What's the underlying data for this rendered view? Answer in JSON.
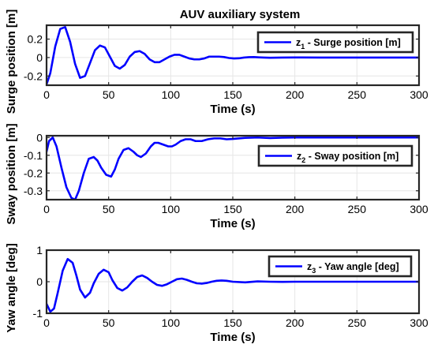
{
  "figure_title": "AUV auxiliary system",
  "colors": {
    "line": "#0000ff",
    "grid": "#e6e6e6",
    "axes": "#262626",
    "background": "#ffffff"
  },
  "chart_data": [
    {
      "type": "line",
      "xlabel": "Time (s)",
      "ylabel": "Surge position [m]",
      "xlim": [
        0,
        300
      ],
      "ylim": [
        -0.3,
        0.35
      ],
      "xticks": [
        0,
        50,
        100,
        150,
        200,
        250,
        300
      ],
      "yticks": [
        -0.2,
        0,
        0.2
      ],
      "xtick_labels": [
        "0",
        "50",
        "100",
        "150",
        "200",
        "250",
        "300"
      ],
      "ytick_labels": [
        "-0.2",
        "0",
        "0.2"
      ],
      "grid": true,
      "legend_position": "top-right",
      "series": [
        {
          "name": "z_1 - Surge position [m]",
          "legend": {
            "base": "z",
            "sub": "1",
            "rest": " - Surge position [m]"
          },
          "x": [
            0,
            3,
            7,
            11,
            15,
            19,
            23,
            27,
            31,
            35,
            39,
            43,
            47,
            51,
            55,
            59,
            63,
            67,
            71,
            75,
            79,
            83,
            87,
            91,
            95,
            99,
            103,
            107,
            111,
            115,
            119,
            123,
            127,
            131,
            135,
            139,
            143,
            147,
            151,
            155,
            159,
            163,
            167,
            171,
            175,
            180,
            190,
            200,
            220,
            240,
            260,
            280,
            300
          ],
          "y": [
            -0.29,
            -0.17,
            0.12,
            0.31,
            0.33,
            0.17,
            -0.07,
            -0.22,
            -0.2,
            -0.06,
            0.08,
            0.13,
            0.11,
            0.01,
            -0.09,
            -0.12,
            -0.08,
            0.01,
            0.06,
            0.07,
            0.04,
            -0.02,
            -0.05,
            -0.05,
            -0.02,
            0.01,
            0.03,
            0.03,
            0.01,
            -0.01,
            -0.02,
            -0.02,
            -0.01,
            0.01,
            0.01,
            0.01,
            0.005,
            -0.005,
            -0.01,
            -0.008,
            0.0,
            0.004,
            0.005,
            0.002,
            0.0,
            -0.002,
            0.0,
            0.001,
            0.0,
            0.0,
            0.0,
            0.0,
            0.0
          ]
        }
      ]
    },
    {
      "type": "line",
      "xlabel": "Time (s)",
      "ylabel": "Sway position [m]",
      "xlim": [
        0,
        300
      ],
      "ylim": [
        -0.35,
        0.01
      ],
      "xticks": [
        0,
        50,
        100,
        150,
        200,
        250,
        300
      ],
      "yticks": [
        -0.3,
        -0.2,
        -0.1,
        0
      ],
      "xtick_labels": [
        "0",
        "50",
        "100",
        "150",
        "200",
        "250",
        "300"
      ],
      "ytick_labels": [
        "-0.3",
        "-0.2",
        "-0.1",
        "0"
      ],
      "grid": true,
      "legend_position": "top-right",
      "series": [
        {
          "name": "z_2 - Sway position [m]",
          "legend": {
            "base": "z",
            "sub": "2",
            "rest": " - Sway position [m]"
          },
          "x": [
            0,
            2,
            5,
            8,
            12,
            16,
            20,
            23,
            26,
            30,
            34,
            38,
            41,
            44,
            48,
            52,
            55,
            58,
            62,
            66,
            70,
            73,
            76,
            80,
            84,
            87,
            90,
            94,
            98,
            101,
            104,
            108,
            112,
            116,
            120,
            125,
            130,
            135,
            140,
            145,
            150,
            160,
            170,
            180,
            190,
            200,
            220,
            240,
            260,
            280,
            300
          ],
          "y": [
            -0.08,
            -0.02,
            0.0,
            -0.05,
            -0.17,
            -0.28,
            -0.34,
            -0.35,
            -0.3,
            -0.2,
            -0.12,
            -0.11,
            -0.13,
            -0.17,
            -0.21,
            -0.22,
            -0.18,
            -0.12,
            -0.07,
            -0.06,
            -0.08,
            -0.1,
            -0.11,
            -0.09,
            -0.05,
            -0.03,
            -0.03,
            -0.04,
            -0.05,
            -0.05,
            -0.04,
            -0.02,
            -0.01,
            -0.01,
            -0.02,
            -0.02,
            -0.01,
            -0.005,
            -0.005,
            -0.01,
            -0.008,
            -0.002,
            0.0,
            -0.003,
            -0.001,
            0.0,
            0.0,
            0.0,
            0.0,
            0.0,
            0.0
          ]
        }
      ]
    },
    {
      "type": "line",
      "xlabel": "Time (s)",
      "ylabel": "Yaw angle [deg]",
      "xlim": [
        0,
        300
      ],
      "ylim": [
        -1,
        1
      ],
      "xticks": [
        0,
        50,
        100,
        150,
        200,
        250,
        300
      ],
      "yticks": [
        -1,
        0,
        1
      ],
      "xtick_labels": [
        "0",
        "50",
        "100",
        "150",
        "200",
        "250",
        "300"
      ],
      "ytick_labels": [
        "-1",
        "0",
        "1"
      ],
      "grid": true,
      "legend_position": "top-right",
      "series": [
        {
          "name": "z_3 - Yaw angle [deg]",
          "legend": {
            "base": "z",
            "sub": "3",
            "rest": " - Yaw angle [deg]"
          },
          "x": [
            0,
            3,
            6,
            9,
            13,
            17,
            21,
            24,
            27,
            31,
            35,
            38,
            42,
            46,
            50,
            53,
            57,
            61,
            65,
            69,
            73,
            77,
            81,
            85,
            89,
            93,
            97,
            101,
            105,
            109,
            113,
            117,
            121,
            125,
            129,
            133,
            137,
            141,
            145,
            150,
            160,
            170,
            180,
            190,
            200,
            220,
            240,
            260,
            280,
            300
          ],
          "y": [
            -0.7,
            -0.95,
            -0.85,
            -0.35,
            0.35,
            0.72,
            0.6,
            0.2,
            -0.25,
            -0.5,
            -0.35,
            -0.05,
            0.25,
            0.38,
            0.3,
            0.05,
            -0.2,
            -0.28,
            -0.18,
            0.0,
            0.15,
            0.2,
            0.12,
            0.0,
            -0.1,
            -0.13,
            -0.08,
            0.0,
            0.08,
            0.1,
            0.06,
            0.0,
            -0.05,
            -0.06,
            -0.04,
            0.0,
            0.03,
            0.04,
            0.03,
            0.0,
            -0.02,
            0.01,
            0.0,
            -0.005,
            0.0,
            0.0,
            0.0,
            0.0,
            0.0,
            0.0
          ]
        }
      ]
    }
  ]
}
